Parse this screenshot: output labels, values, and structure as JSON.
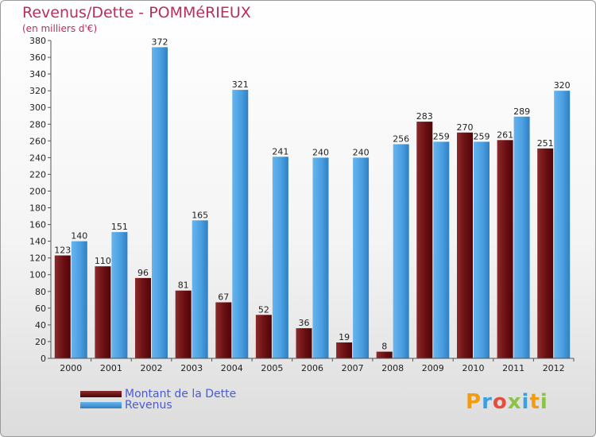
{
  "header": {
    "title": "Revenus/Dette - POMMéRIEUX",
    "subtitle": "(en milliers d'€)"
  },
  "legend": {
    "items": [
      {
        "label": "Montant de la Dette",
        "color": "#6b0f12"
      },
      {
        "label": "Revenus",
        "color": "#4a9fe0"
      }
    ]
  },
  "logo": {
    "text": "Proxiti"
  },
  "chart_data": {
    "type": "bar",
    "categories": [
      "2000",
      "2001",
      "2002",
      "2003",
      "2004",
      "2005",
      "2006",
      "2007",
      "2008",
      "2009",
      "2010",
      "2011",
      "2012"
    ],
    "series": [
      {
        "name": "Montant de la Dette",
        "color": "#6b0f12",
        "values": [
          123,
          110,
          96,
          81,
          67,
          52,
          36,
          19,
          8,
          283,
          270,
          261,
          251
        ]
      },
      {
        "name": "Revenus",
        "color": "#4a9fe0",
        "values": [
          140,
          151,
          372,
          165,
          321,
          241,
          240,
          240,
          256,
          259,
          259,
          289,
          320
        ]
      }
    ],
    "ylim": [
      0,
      380
    ],
    "ytick_step": 20,
    "grid": false,
    "legend_position": "bottom-left"
  }
}
